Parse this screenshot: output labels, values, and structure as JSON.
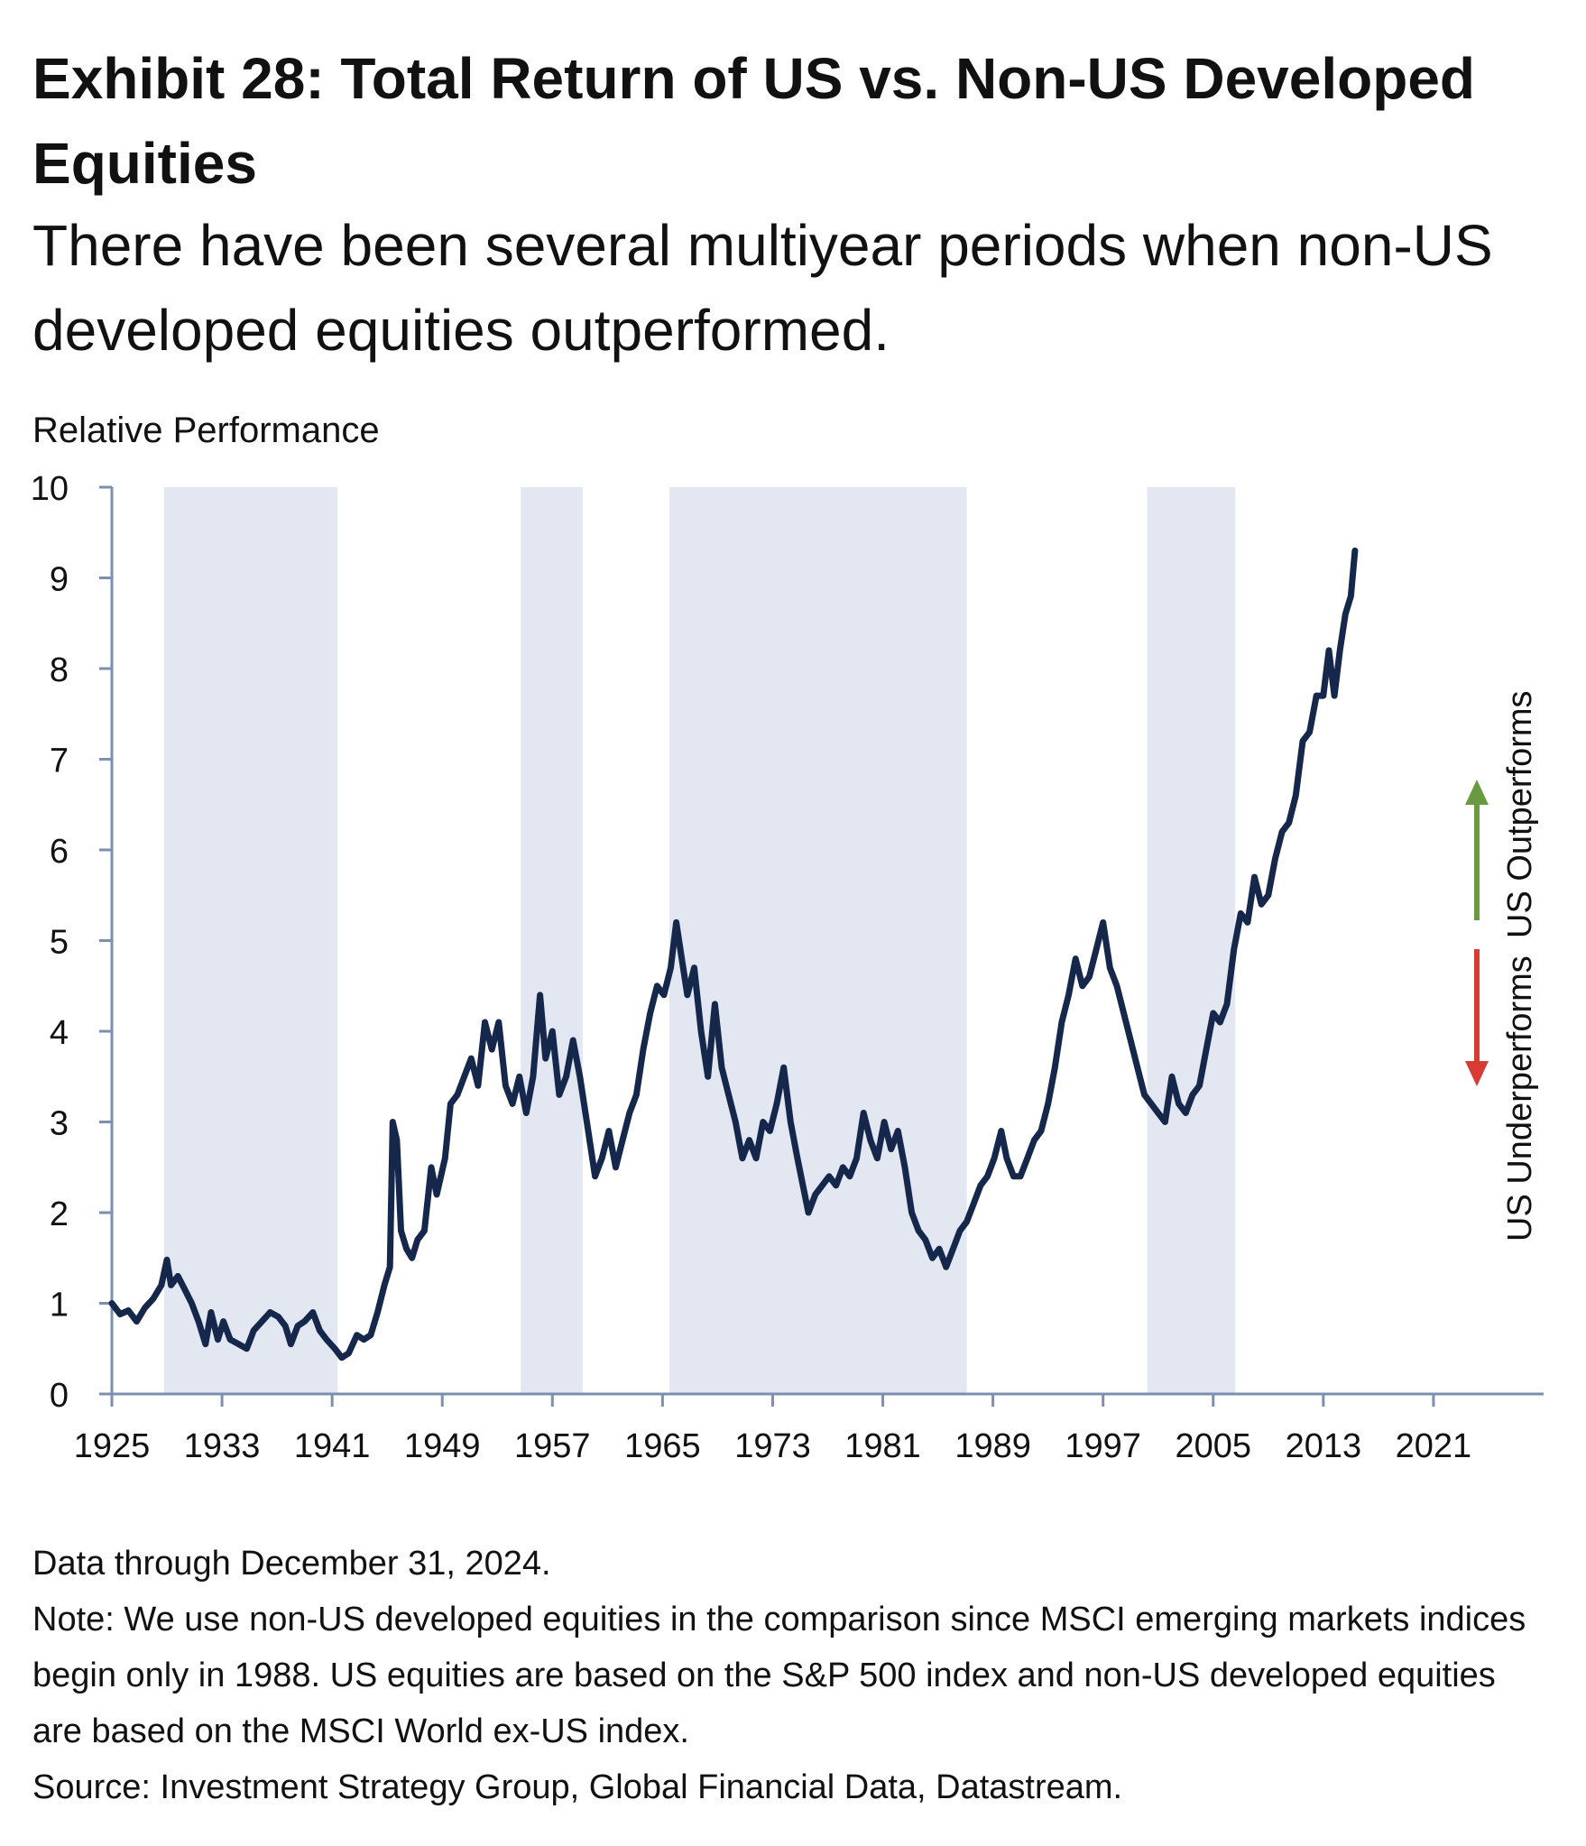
{
  "header": {
    "title": "Exhibit 28: Total Return of US vs. Non-US Developed Equities",
    "subtitle": "There have been several multiyear periods when non-US developed equities outperformed."
  },
  "footer": {
    "data_through": "Data through December 31, 2024.",
    "note_line1": "Note: We use non-US developed equities in the comparison since MSCI emerging markets indices",
    "note_line2": "begin only in 1988. US equities are based on the S&P 500 index and non-US developed equities",
    "note_line3": "are based on the MSCI World ex-US index.",
    "source": "Source: Investment Strategy Group, Global Financial Data, Datastream."
  },
  "colors": {
    "line": "#15284b",
    "shade": "#e2e7f1",
    "axis": "#7d8fb0",
    "up_arrow": "#6a9a3f",
    "down_arrow": "#d83a34"
  },
  "chart_data": {
    "type": "line",
    "title": "Exhibit 28: Total Return of US vs. Non-US Developed Equities",
    "ylabel": "Relative Performance",
    "xlabel": "",
    "xlim": [
      1925,
      2029
    ],
    "ylim": [
      0,
      10
    ],
    "yticks": [
      0,
      1,
      2,
      3,
      4,
      5,
      6,
      7,
      8,
      9,
      10
    ],
    "xticks": [
      1925,
      1933,
      1941,
      1949,
      1957,
      1965,
      1973,
      1981,
      1989,
      1997,
      2005,
      2013,
      2021
    ],
    "grid": false,
    "legend": "none",
    "annotations": {
      "up": "US Outperforms",
      "down": "US Underperforms"
    },
    "shaded_periods": [
      [
        1928.8,
        1941.4
      ],
      [
        1954.7,
        1959.2
      ],
      [
        1965.5,
        1987.1
      ],
      [
        2000.2,
        2006.6
      ]
    ],
    "series": [
      {
        "points": [
          [
            1925.0,
            1.0
          ],
          [
            1925.6,
            0.88
          ],
          [
            1926.2,
            0.92
          ],
          [
            1926.8,
            0.8
          ],
          [
            1927.4,
            0.95
          ],
          [
            1928.0,
            1.05
          ],
          [
            1928.6,
            1.2
          ],
          [
            1929.0,
            1.48
          ],
          [
            1929.3,
            1.2
          ],
          [
            1929.8,
            1.3
          ],
          [
            1930.3,
            1.15
          ],
          [
            1930.8,
            1.0
          ],
          [
            1931.3,
            0.8
          ],
          [
            1931.8,
            0.55
          ],
          [
            1932.2,
            0.9
          ],
          [
            1932.7,
            0.6
          ],
          [
            1933.1,
            0.8
          ],
          [
            1933.6,
            0.6
          ],
          [
            1934.2,
            0.55
          ],
          [
            1934.8,
            0.5
          ],
          [
            1935.3,
            0.7
          ],
          [
            1935.9,
            0.8
          ],
          [
            1936.5,
            0.9
          ],
          [
            1937.1,
            0.85
          ],
          [
            1937.6,
            0.75
          ],
          [
            1938.0,
            0.55
          ],
          [
            1938.5,
            0.75
          ],
          [
            1939.0,
            0.8
          ],
          [
            1939.6,
            0.9
          ],
          [
            1940.1,
            0.7
          ],
          [
            1940.6,
            0.6
          ],
          [
            1941.2,
            0.5
          ],
          [
            1941.7,
            0.4
          ],
          [
            1942.2,
            0.45
          ],
          [
            1942.8,
            0.65
          ],
          [
            1943.3,
            0.6
          ],
          [
            1943.8,
            0.65
          ],
          [
            1944.3,
            0.9
          ],
          [
            1944.8,
            1.2
          ],
          [
            1945.2,
            1.4
          ],
          [
            1945.4,
            3.0
          ],
          [
            1945.7,
            2.8
          ],
          [
            1946.0,
            1.8
          ],
          [
            1946.4,
            1.6
          ],
          [
            1946.8,
            1.5
          ],
          [
            1947.2,
            1.7
          ],
          [
            1947.7,
            1.8
          ],
          [
            1948.2,
            2.5
          ],
          [
            1948.6,
            2.2
          ],
          [
            1949.2,
            2.6
          ],
          [
            1949.6,
            3.2
          ],
          [
            1950.1,
            3.3
          ],
          [
            1950.6,
            3.5
          ],
          [
            1951.1,
            3.7
          ],
          [
            1951.6,
            3.4
          ],
          [
            1952.1,
            4.1
          ],
          [
            1952.6,
            3.8
          ],
          [
            1953.1,
            4.1
          ],
          [
            1953.6,
            3.4
          ],
          [
            1954.1,
            3.2
          ],
          [
            1954.6,
            3.5
          ],
          [
            1955.1,
            3.1
          ],
          [
            1955.6,
            3.5
          ],
          [
            1956.1,
            4.4
          ],
          [
            1956.5,
            3.7
          ],
          [
            1957.0,
            4.0
          ],
          [
            1957.5,
            3.3
          ],
          [
            1958.0,
            3.5
          ],
          [
            1958.5,
            3.9
          ],
          [
            1959.0,
            3.5
          ],
          [
            1959.6,
            2.9
          ],
          [
            1960.1,
            2.4
          ],
          [
            1960.6,
            2.6
          ],
          [
            1961.1,
            2.9
          ],
          [
            1961.6,
            2.5
          ],
          [
            1962.1,
            2.8
          ],
          [
            1962.6,
            3.1
          ],
          [
            1963.1,
            3.3
          ],
          [
            1963.6,
            3.8
          ],
          [
            1964.1,
            4.2
          ],
          [
            1964.6,
            4.5
          ],
          [
            1965.1,
            4.4
          ],
          [
            1965.6,
            4.7
          ],
          [
            1966.0,
            5.2
          ],
          [
            1966.4,
            4.8
          ],
          [
            1966.8,
            4.4
          ],
          [
            1967.3,
            4.7
          ],
          [
            1967.8,
            4.0
          ],
          [
            1968.3,
            3.5
          ],
          [
            1968.8,
            4.3
          ],
          [
            1969.3,
            3.6
          ],
          [
            1969.8,
            3.3
          ],
          [
            1970.3,
            3.0
          ],
          [
            1970.8,
            2.6
          ],
          [
            1971.3,
            2.8
          ],
          [
            1971.8,
            2.6
          ],
          [
            1972.3,
            3.0
          ],
          [
            1972.8,
            2.9
          ],
          [
            1973.3,
            3.2
          ],
          [
            1973.8,
            3.6
          ],
          [
            1974.3,
            3.0
          ],
          [
            1974.8,
            2.6
          ],
          [
            1975.2,
            2.3
          ],
          [
            1975.6,
            2.0
          ],
          [
            1976.1,
            2.2
          ],
          [
            1976.6,
            2.3
          ],
          [
            1977.1,
            2.4
          ],
          [
            1977.6,
            2.3
          ],
          [
            1978.1,
            2.5
          ],
          [
            1978.6,
            2.4
          ],
          [
            1979.1,
            2.6
          ],
          [
            1979.6,
            3.1
          ],
          [
            1980.1,
            2.8
          ],
          [
            1980.6,
            2.6
          ],
          [
            1981.1,
            3.0
          ],
          [
            1981.6,
            2.7
          ],
          [
            1982.1,
            2.9
          ],
          [
            1982.6,
            2.5
          ],
          [
            1983.1,
            2.0
          ],
          [
            1983.6,
            1.8
          ],
          [
            1984.1,
            1.7
          ],
          [
            1984.6,
            1.5
          ],
          [
            1985.1,
            1.6
          ],
          [
            1985.6,
            1.4
          ],
          [
            1986.1,
            1.6
          ],
          [
            1986.6,
            1.8
          ],
          [
            1987.1,
            1.9
          ],
          [
            1987.6,
            2.1
          ],
          [
            1988.1,
            2.3
          ],
          [
            1988.6,
            2.4
          ],
          [
            1989.1,
            2.6
          ],
          [
            1989.6,
            2.9
          ],
          [
            1990.0,
            2.6
          ],
          [
            1990.5,
            2.4
          ],
          [
            1991.0,
            2.4
          ],
          [
            1991.5,
            2.6
          ],
          [
            1992.0,
            2.8
          ],
          [
            1992.5,
            2.9
          ],
          [
            1993.0,
            3.2
          ],
          [
            1993.5,
            3.6
          ],
          [
            1994.0,
            4.1
          ],
          [
            1994.5,
            4.4
          ],
          [
            1995.0,
            4.8
          ],
          [
            1995.5,
            4.5
          ],
          [
            1996.0,
            4.6
          ],
          [
            1996.5,
            4.9
          ],
          [
            1997.0,
            5.2
          ],
          [
            1997.5,
            4.7
          ],
          [
            1998.0,
            4.5
          ],
          [
            1998.5,
            4.2
          ],
          [
            1999.0,
            3.9
          ],
          [
            1999.5,
            3.6
          ],
          [
            2000.0,
            3.3
          ],
          [
            2000.5,
            3.2
          ],
          [
            2001.0,
            3.1
          ],
          [
            2001.5,
            3.0
          ],
          [
            2002.0,
            3.5
          ],
          [
            2002.5,
            3.2
          ],
          [
            2003.0,
            3.1
          ],
          [
            2003.5,
            3.3
          ],
          [
            2004.0,
            3.4
          ],
          [
            2004.5,
            3.8
          ],
          [
            2005.0,
            4.2
          ],
          [
            2005.5,
            4.1
          ],
          [
            2006.0,
            4.3
          ],
          [
            2006.5,
            4.9
          ],
          [
            2007.0,
            5.3
          ],
          [
            2007.5,
            5.2
          ],
          [
            2008.0,
            5.7
          ],
          [
            2008.5,
            5.4
          ],
          [
            2009.0,
            5.5
          ],
          [
            2009.5,
            5.9
          ],
          [
            2010.0,
            6.2
          ],
          [
            2010.5,
            6.3
          ],
          [
            2011.0,
            6.6
          ],
          [
            2011.5,
            7.2
          ],
          [
            2012.0,
            7.3
          ],
          [
            2012.5,
            7.7
          ],
          [
            2013.0,
            7.7
          ],
          [
            2013.4,
            8.2
          ],
          [
            2013.8,
            7.7
          ],
          [
            2014.2,
            8.2
          ],
          [
            2014.6,
            8.6
          ],
          [
            2015.0,
            8.8
          ],
          [
            2015.3,
            9.3
          ]
        ]
      }
    ]
  }
}
